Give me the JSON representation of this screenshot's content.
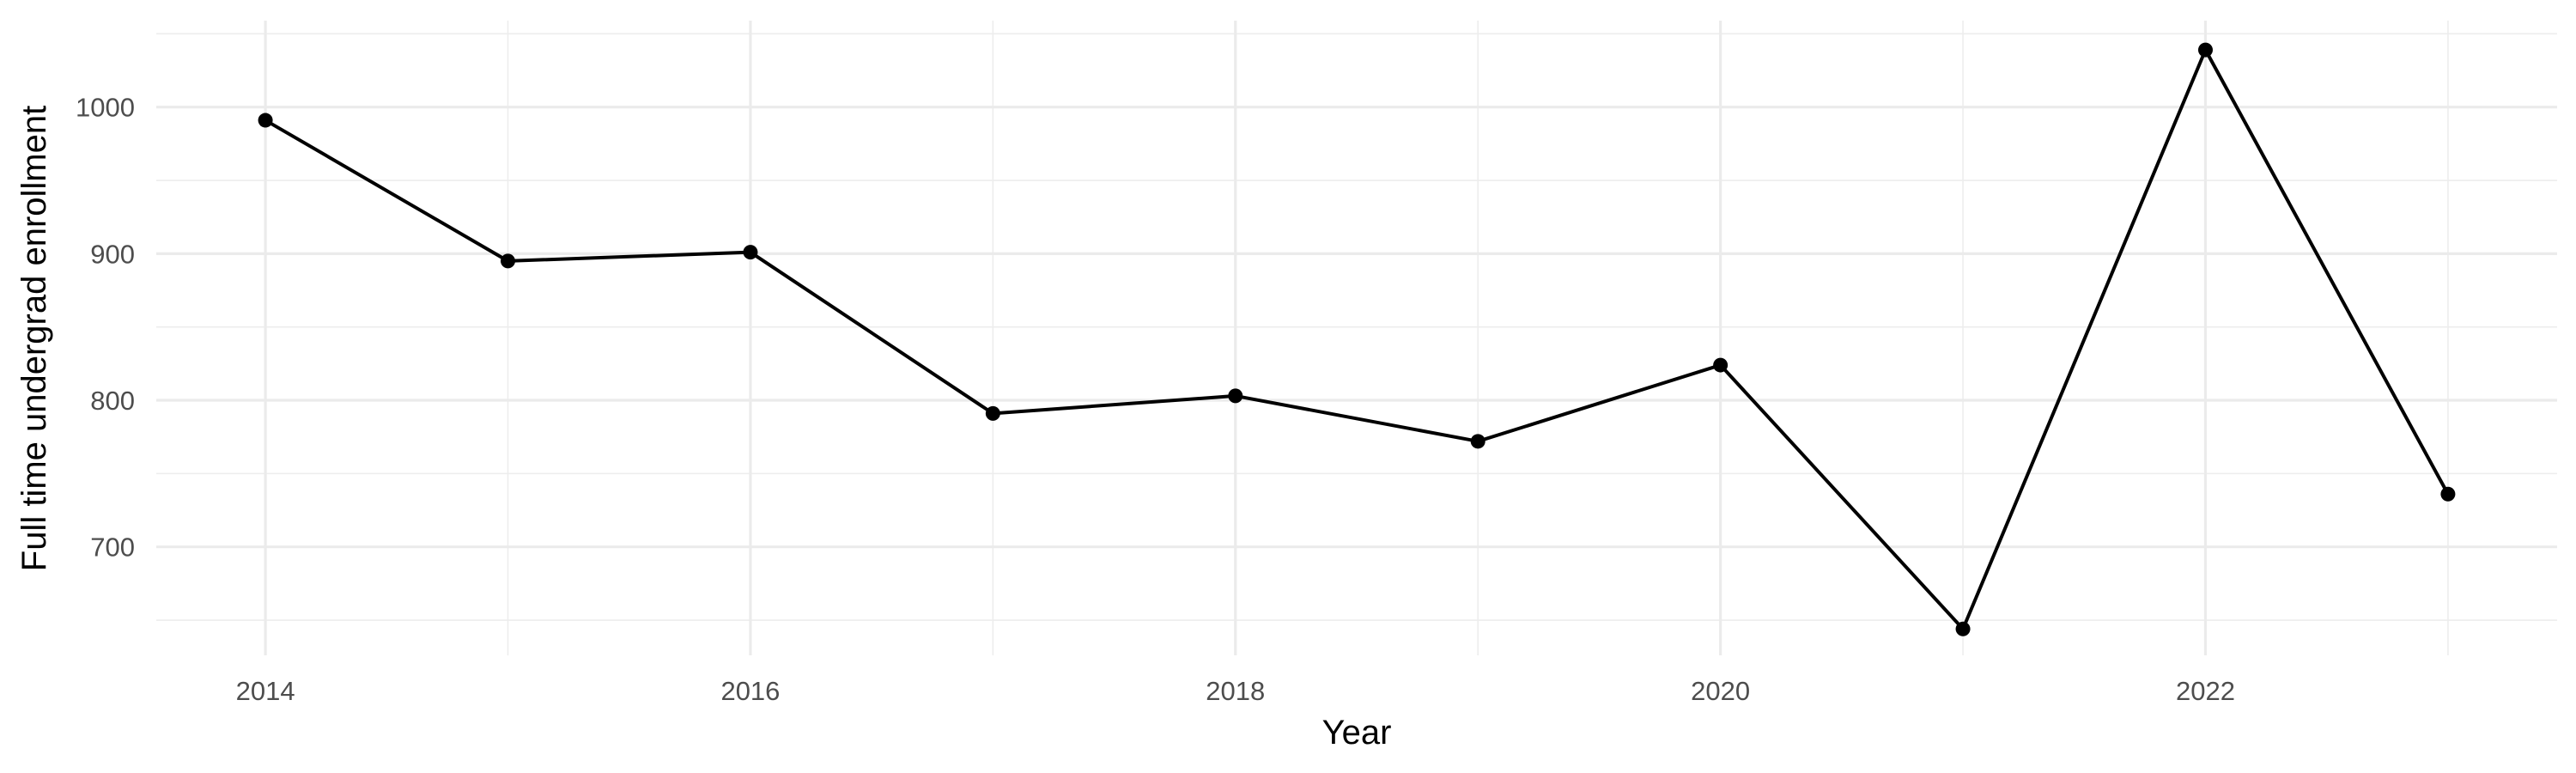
{
  "chart_data": {
    "type": "line",
    "title": "",
    "xlabel": "Year",
    "ylabel": "Full time undergrad enrollment",
    "x": [
      2014,
      2015,
      2016,
      2017,
      2018,
      2019,
      2020,
      2021,
      2022,
      2023
    ],
    "series": [
      {
        "name": "Full time undergrad enrollment",
        "values": [
          991,
          895,
          901,
          791,
          803,
          772,
          824,
          644,
          1039,
          736
        ]
      }
    ],
    "x_major_ticks": [
      2014,
      2016,
      2018,
      2020,
      2022
    ],
    "x_minor_ticks": [
      2015,
      2017,
      2019,
      2021,
      2023
    ],
    "x_tick_labels": [
      "2014",
      "2016",
      "2018",
      "2020",
      "2022"
    ],
    "y_major_ticks": [
      700,
      800,
      900,
      1000
    ],
    "y_minor_ticks": [
      650,
      750,
      850,
      950,
      1050
    ],
    "y_tick_labels": [
      "700",
      "800",
      "900",
      "1000"
    ],
    "xlim": [
      2013.55,
      2023.45
    ],
    "ylim": [
      626,
      1059
    ],
    "grid": true,
    "legend_position": "none",
    "colors": {
      "line": "#000000",
      "point": "#000000",
      "grid_major": "#EBEBEB",
      "grid_minor": "#EDEDED",
      "tick_label": "#4D4D4D",
      "axis_title": "#000000",
      "background": "#FFFFFF"
    }
  }
}
